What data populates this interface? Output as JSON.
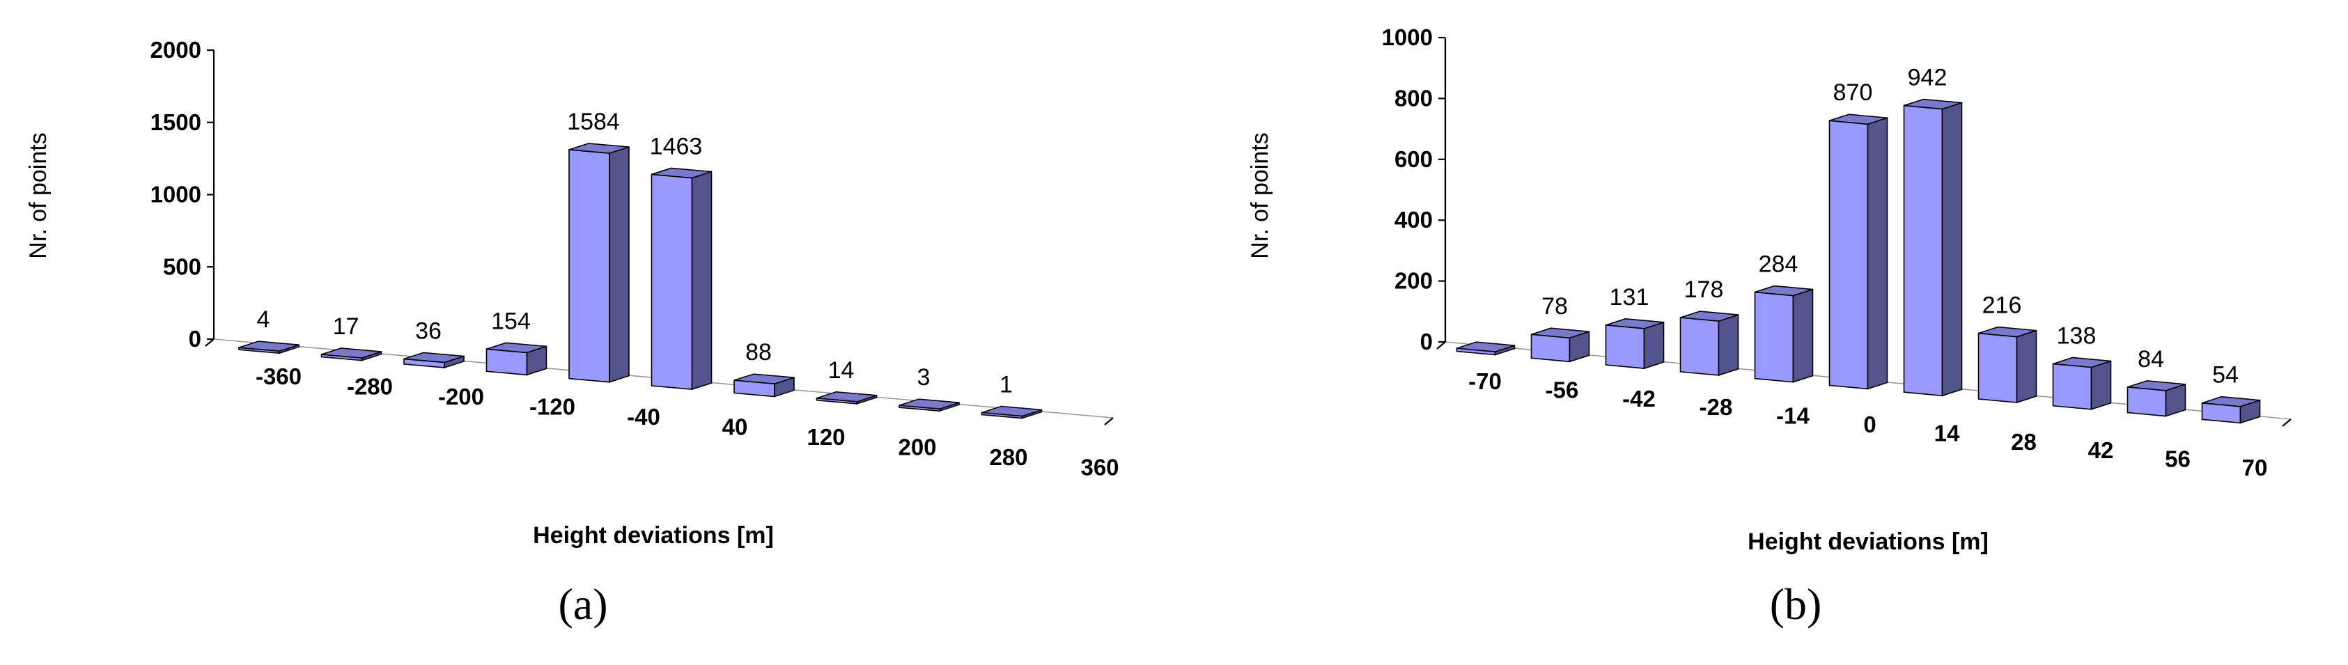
{
  "chart_data": [
    {
      "type": "bar",
      "panel_label": "(a)",
      "categories": [
        "-360",
        "-280",
        "-200",
        "-120",
        "-40",
        "40",
        "120",
        "200",
        "280",
        "360"
      ],
      "values": [
        4,
        17,
        36,
        154,
        1584,
        1463,
        88,
        14,
        3,
        1
      ],
      "data_labels": [
        "4",
        "17",
        "36",
        "154",
        "1584",
        "1463",
        "88",
        "14",
        "3",
        "1"
      ],
      "bar_color": "#9999ff",
      "xlabel": "Height deviations  [m]",
      "ylabel": "Nr. of points",
      "ylim": [
        0,
        2000
      ],
      "yticks": [
        "0",
        "500",
        "1000",
        "1500",
        "2000"
      ],
      "grid": false
    },
    {
      "type": "bar",
      "panel_label": "(b)",
      "categories": [
        "-70",
        "-56",
        "-42",
        "-28",
        "-14",
        "0",
        "14",
        "28",
        "42",
        "56",
        "70"
      ],
      "values": [
        10,
        78,
        131,
        178,
        284,
        870,
        942,
        216,
        138,
        84,
        54
      ],
      "data_labels": [
        "",
        "78",
        "131",
        "178",
        "284",
        "870",
        "942",
        "216",
        "138",
        "84",
        "54"
      ],
      "bar_color": "#9999ff",
      "xlabel": "Height deviations  [m]",
      "ylabel": "Nr. of points",
      "ylim": [
        0,
        1000
      ],
      "yticks": [
        "0",
        "200",
        "400",
        "600",
        "800",
        "1000"
      ],
      "grid": false
    }
  ]
}
